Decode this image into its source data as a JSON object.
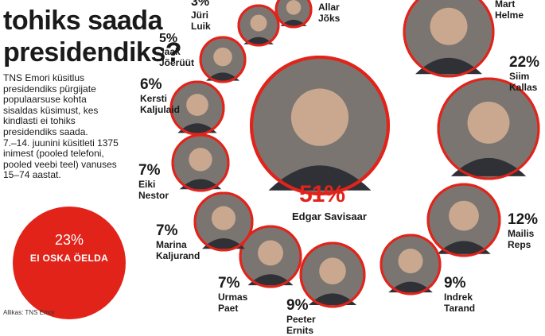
{
  "headline": {
    "line1": "tohiks saada",
    "line2": "presidendiks?"
  },
  "intro": {
    "para1": "TNS Emori küsitlus presidendiks pürgijate populaarsuse kohta sisaldas küsimust, kes kindlasti ei tohiks presidendiks saada.",
    "para2": "7.–14. juunini küsitleti 1375 inimest (pooled telefoni, pooled veebi teel) vanuses 15–74 aastat."
  },
  "dont_know": {
    "pct": "23%",
    "label": "EI OSKA ÖELDA"
  },
  "source": "Allikas: TNS Emor",
  "colors": {
    "accent": "#e2231a",
    "text": "#1a1a1a",
    "photo_fill": "#7a7570"
  },
  "chart_data": {
    "type": "bubble",
    "title": "",
    "candidates": [
      {
        "name": "Edgar Savisaar",
        "value": 51,
        "label": "51%"
      },
      {
        "name": "Siim Kallas",
        "value": 22,
        "label": "22%"
      },
      {
        "name": "Mailis Reps",
        "value": 12,
        "label": "12%"
      },
      {
        "name": "Indrek Tarand",
        "value": 9,
        "label": "9%"
      },
      {
        "name": "Peeter Ernits",
        "value": 9,
        "label": "9%"
      },
      {
        "name": "Urmas Paet",
        "value": 7,
        "label": "7%"
      },
      {
        "name": "Marina Kaljurand",
        "value": 7,
        "label": "7%"
      },
      {
        "name": "Eiki Nestor",
        "value": 7,
        "label": "7%"
      },
      {
        "name": "Kersti Kaljulaid",
        "value": 6,
        "label": "6%"
      },
      {
        "name": "Jaak Jõerüüt",
        "value": 5,
        "label": "5%"
      },
      {
        "name": "Jüri Luik",
        "value": 3,
        "label": "3%"
      },
      {
        "name": "Allar Jõks",
        "value": null,
        "label": ""
      },
      {
        "name": "Mart Helme",
        "value": null,
        "label": ""
      }
    ],
    "not_decided": {
      "value": 23,
      "label": "EI OSKA ÖELDA"
    }
  }
}
